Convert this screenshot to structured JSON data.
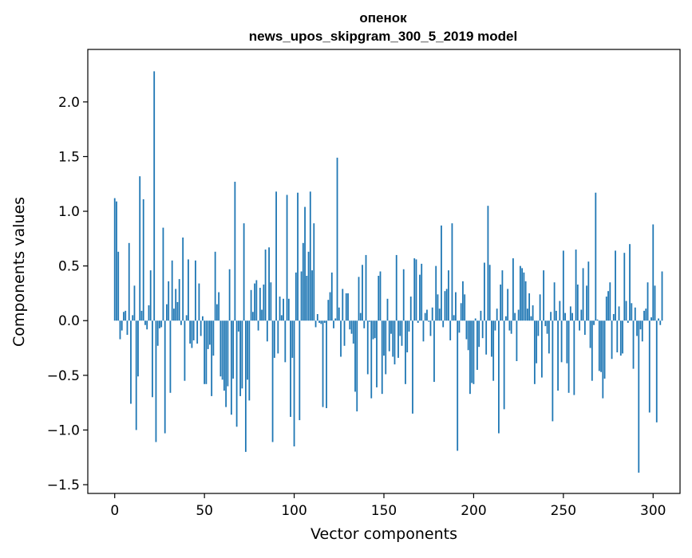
{
  "chart_data": {
    "type": "bar",
    "title_line1": "опенок",
    "title_line2": "news_upos_skipgram_300_5_2019 model",
    "xlabel": "Vector components",
    "ylabel": "Components values",
    "xlim": [
      -15,
      315
    ],
    "ylim": [
      -1.58,
      2.48
    ],
    "xticks": [
      0,
      50,
      100,
      150,
      200,
      250,
      300
    ],
    "yticks": [
      -1.5,
      -1.0,
      -0.5,
      0.0,
      0.5,
      1.0,
      1.5,
      2.0
    ],
    "ytick_labels": [
      "−1.5",
      "−1.0",
      "−0.5",
      "0.0",
      "0.5",
      "1.0",
      "1.5",
      "2.0"
    ],
    "bar_color": "#1f77b4",
    "grid": false,
    "values": [
      1.12,
      1.09,
      0.63,
      -0.17,
      -0.09,
      0.08,
      0.09,
      -0.13,
      0.71,
      -0.76,
      0.05,
      0.32,
      -1.0,
      -0.51,
      1.32,
      0.09,
      1.11,
      -0.04,
      -0.08,
      0.14,
      0.46,
      -0.7,
      2.28,
      -1.11,
      -0.23,
      -0.07,
      -0.06,
      0.85,
      -1.03,
      0.15,
      0.36,
      -0.66,
      0.55,
      0.11,
      0.29,
      0.17,
      0.38,
      -0.04,
      0.76,
      -0.55,
      0.05,
      0.56,
      -0.21,
      -0.25,
      -0.18,
      0.55,
      -0.21,
      0.34,
      -0.14,
      0.04,
      -0.58,
      -0.58,
      -0.26,
      -0.22,
      -0.69,
      -0.32,
      0.63,
      0.15,
      0.26,
      -0.51,
      -0.54,
      -0.64,
      -0.79,
      -0.6,
      0.47,
      -0.86,
      -0.53,
      1.27,
      -0.97,
      -0.1,
      -0.69,
      -0.62,
      0.89,
      -1.2,
      -0.54,
      -0.73,
      0.28,
      0.08,
      0.34,
      0.37,
      -0.09,
      0.3,
      0.1,
      0.33,
      0.65,
      -0.19,
      0.67,
      0.35,
      -1.11,
      -0.34,
      1.18,
      -0.3,
      0.22,
      0.05,
      0.2,
      -0.38,
      1.15,
      0.2,
      -0.88,
      -0.34,
      -1.15,
      0.44,
      1.17,
      -0.91,
      0.45,
      0.71,
      1.04,
      0.41,
      0.63,
      1.18,
      0.46,
      0.89,
      -0.06,
      0.06,
      -0.02,
      -0.03,
      -0.79,
      -0.02,
      -0.8,
      0.19,
      0.26,
      0.44,
      -0.07,
      0.02,
      1.49,
      0.12,
      -0.33,
      0.29,
      -0.23,
      0.25,
      0.25,
      -0.08,
      -0.12,
      -0.21,
      -0.65,
      -0.83,
      0.4,
      0.07,
      0.51,
      -0.07,
      0.6,
      -0.49,
      -0.01,
      -0.71,
      -0.17,
      -0.16,
      -0.61,
      0.41,
      0.45,
      -0.67,
      -0.32,
      -0.49,
      0.2,
      -0.28,
      -0.12,
      -0.33,
      -0.4,
      0.6,
      -0.34,
      -0.14,
      -0.23,
      0.47,
      -0.58,
      -0.29,
      -0.1,
      0.22,
      -0.85,
      0.57,
      0.56,
      -0.02,
      0.42,
      0.52,
      -0.19,
      0.07,
      0.1,
      -0.01,
      -0.14,
      0.12,
      -0.56,
      0.5,
      0.24,
      0.11,
      0.87,
      -0.06,
      0.27,
      0.29,
      0.46,
      -0.18,
      0.89,
      0.05,
      0.26,
      -1.19,
      -0.11,
      0.16,
      0.36,
      0.24,
      -0.17,
      -0.27,
      -0.67,
      -0.57,
      -0.58,
      0.02,
      -0.45,
      -0.24,
      0.09,
      -0.16,
      0.53,
      -0.31,
      1.05,
      0.51,
      -0.33,
      -0.55,
      -0.09,
      0.11,
      -1.03,
      0.33,
      0.46,
      -0.81,
      0.04,
      0.29,
      -0.09,
      -0.12,
      0.57,
      0.07,
      -0.37,
      0.1,
      0.5,
      0.48,
      0.44,
      0.36,
      0.11,
      0.25,
      0.04,
      0.14,
      -0.58,
      -0.39,
      -0.14,
      0.24,
      -0.52,
      0.46,
      -0.05,
      -0.12,
      -0.3,
      0.08,
      -0.92,
      0.35,
      0.09,
      -0.64,
      0.18,
      -0.38,
      0.64,
      0.07,
      -0.39,
      -0.66,
      0.13,
      0.07,
      -0.68,
      0.65,
      0.33,
      -0.09,
      0.1,
      0.48,
      -0.13,
      0.32,
      0.54,
      -0.25,
      -0.55,
      -0.04,
      1.17,
      0.01,
      -0.46,
      -0.47,
      -0.71,
      -0.53,
      0.22,
      0.27,
      0.35,
      -0.35,
      0.06,
      0.64,
      -0.29,
      0.13,
      -0.32,
      -0.3,
      0.62,
      0.18,
      -0.02,
      0.7,
      0.16,
      -0.44,
      0.12,
      -0.14,
      -1.39,
      -0.08,
      -0.19,
      0.09,
      0.11,
      0.35,
      -0.84,
      0.03,
      0.88,
      0.32,
      -0.93,
      0.02,
      -0.04,
      0.45
    ]
  }
}
